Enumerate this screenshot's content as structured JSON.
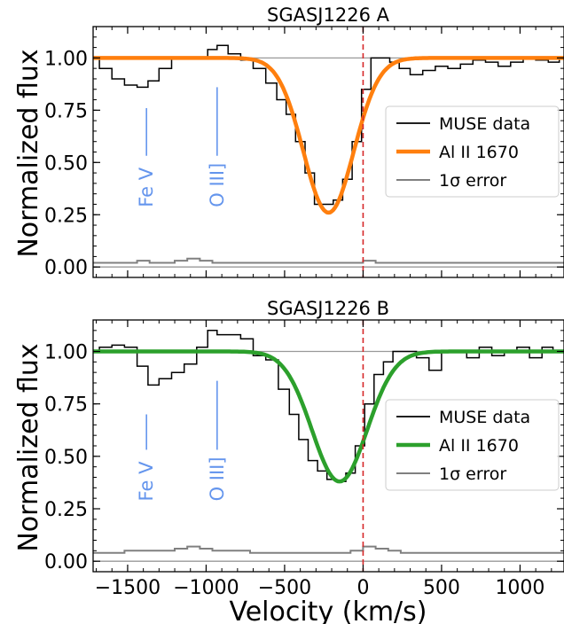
{
  "chart_data": {
    "type": "line",
    "shared_xlabel": "Velocity (km/s)",
    "xlim": [
      -1720,
      1280
    ],
    "xticks": [
      -1500,
      -1000,
      -500,
      0,
      500,
      1000
    ],
    "xtick_labels": [
      "−1500",
      "−1000",
      "−500",
      "0",
      "500",
      "1000"
    ],
    "colors": {
      "data": "#000000",
      "error": "#808080",
      "annotation": "#6495ED",
      "zero_line": "#d62728",
      "fit_top": "#ff7f0e",
      "fit_bottom": "#2ca02c"
    },
    "panels": [
      {
        "title": "SGASJ1226 A",
        "ylabel": "Normalized flux",
        "ylim": [
          -0.05,
          1.15
        ],
        "yticks": [
          0.0,
          0.25,
          0.5,
          0.75,
          1.0
        ],
        "ytick_labels": [
          "0.00",
          "0.25",
          "0.50",
          "0.75",
          "1.00"
        ],
        "legend": {
          "placement": "center-right",
          "entries": [
            "MUSE data",
            "Al II 1670",
            "1σ error"
          ]
        },
        "annotations": [
          {
            "label": "Fe V",
            "x": -1380,
            "y_range": [
              0.32,
              0.76
            ]
          },
          {
            "label": "O III]",
            "x": -930,
            "y_range": [
              0.32,
              0.86
            ]
          }
        ],
        "series": [
          {
            "name": "MUSE data",
            "drawstyle": "steps-mid",
            "x": [
              -1720,
              -1640,
              -1560,
              -1480,
              -1400,
              -1340,
              -1260,
              -1180,
              -1100,
              -1020,
              -960,
              -900,
              -820,
              -740,
              -660,
              -580,
              -520,
              -460,
              -400,
              -340,
              -280,
              -220,
              -160,
              -100,
              -40,
              20,
              80,
              140,
              200,
              260,
              340,
              420,
              500,
              580,
              660,
              740,
              820,
              900,
              980,
              1060,
              1140,
              1220,
              1280
            ],
            "y": [
              1.0,
              0.95,
              0.9,
              0.87,
              0.86,
              0.89,
              0.95,
              1.0,
              1.0,
              1.0,
              1.04,
              1.06,
              1.02,
              0.99,
              0.95,
              0.88,
              0.8,
              0.73,
              0.6,
              0.45,
              0.3,
              0.3,
              0.32,
              0.42,
              0.6,
              0.85,
              1.0,
              1.0,
              0.98,
              0.95,
              0.92,
              0.94,
              0.96,
              0.95,
              0.97,
              0.99,
              0.98,
              0.96,
              0.98,
              1.0,
              0.99,
              0.98,
              1.0
            ]
          },
          {
            "name": "Al II 1670",
            "style": "fit",
            "center": -220,
            "depth": 0.74,
            "sigma": 160
          },
          {
            "name": "1σ error",
            "drawstyle": "steps-mid",
            "x": [
              -1720,
              -1640,
              -1560,
              -1480,
              -1400,
              -1320,
              -1240,
              -1160,
              -1080,
              -1000,
              -920,
              -840,
              -760,
              -680,
              -600,
              -520,
              -440,
              -360,
              -280,
              -200,
              -120,
              -40,
              40,
              120,
              200,
              280,
              360,
              440,
              520,
              600,
              680,
              760,
              840,
              920,
              1000,
              1080,
              1160,
              1240,
              1280
            ],
            "y": [
              0.02,
              0.02,
              0.02,
              0.02,
              0.03,
              0.02,
              0.02,
              0.03,
              0.04,
              0.03,
              0.02,
              0.02,
              0.02,
              0.02,
              0.02,
              0.02,
              0.02,
              0.02,
              0.02,
              0.02,
              0.02,
              0.02,
              0.03,
              0.02,
              0.02,
              0.02,
              0.02,
              0.02,
              0.02,
              0.02,
              0.02,
              0.02,
              0.02,
              0.02,
              0.02,
              0.02,
              0.02,
              0.02,
              0.02
            ]
          }
        ]
      },
      {
        "title": "SGASJ1226 B",
        "ylabel": "Normalized flux",
        "ylim": [
          -0.05,
          1.15
        ],
        "yticks": [
          0.0,
          0.25,
          0.5,
          0.75,
          1.0
        ],
        "ytick_labels": [
          "0.00",
          "0.25",
          "0.50",
          "0.75",
          "1.00"
        ],
        "legend": {
          "placement": "center-right",
          "entries": [
            "MUSE data",
            "Al II 1670",
            "1σ error"
          ]
        },
        "annotations": [
          {
            "label": "Fe V",
            "x": -1380,
            "y_range": [
              0.32,
              0.7
            ]
          },
          {
            "label": "O III]",
            "x": -930,
            "y_range": [
              0.32,
              0.86
            ]
          }
        ],
        "series": [
          {
            "name": "MUSE data",
            "drawstyle": "steps-mid",
            "x": [
              -1720,
              -1640,
              -1560,
              -1480,
              -1400,
              -1340,
              -1260,
              -1180,
              -1100,
              -1020,
              -960,
              -900,
              -820,
              -740,
              -660,
              -580,
              -500,
              -440,
              -380,
              -320,
              -260,
              -200,
              -140,
              -80,
              -20,
              40,
              100,
              160,
              220,
              300,
              380,
              460,
              540,
              620,
              700,
              780,
              860,
              940,
              1020,
              1100,
              1180,
              1240,
              1280
            ],
            "y": [
              1.0,
              1.02,
              1.03,
              1.02,
              0.93,
              0.84,
              0.87,
              0.9,
              0.94,
              1.02,
              1.1,
              1.08,
              1.08,
              1.06,
              0.98,
              0.96,
              0.82,
              0.7,
              0.58,
              0.48,
              0.43,
              0.39,
              0.38,
              0.42,
              0.55,
              0.75,
              0.89,
              0.95,
              1.0,
              1.0,
              0.97,
              0.91,
              1.0,
              1.0,
              0.97,
              1.02,
              0.98,
              1.0,
              1.02,
              0.97,
              1.02,
              1.0,
              1.0
            ]
          },
          {
            "name": "Al II 1670",
            "style": "fit",
            "center": -150,
            "depth": 0.62,
            "sigma": 175
          },
          {
            "name": "1σ error",
            "drawstyle": "steps-mid",
            "x": [
              -1720,
              -1640,
              -1560,
              -1480,
              -1400,
              -1320,
              -1240,
              -1160,
              -1080,
              -1000,
              -920,
              -840,
              -760,
              -680,
              -600,
              -520,
              -440,
              -360,
              -280,
              -200,
              -120,
              -40,
              40,
              120,
              200,
              280,
              360,
              440,
              520,
              600,
              680,
              760,
              840,
              920,
              1000,
              1080,
              1160,
              1240,
              1280
            ],
            "y": [
              0.04,
              0.04,
              0.04,
              0.05,
              0.05,
              0.05,
              0.05,
              0.06,
              0.07,
              0.06,
              0.05,
              0.05,
              0.05,
              0.04,
              0.04,
              0.04,
              0.04,
              0.04,
              0.04,
              0.04,
              0.04,
              0.05,
              0.07,
              0.06,
              0.05,
              0.04,
              0.04,
              0.04,
              0.04,
              0.04,
              0.04,
              0.04,
              0.04,
              0.04,
              0.04,
              0.04,
              0.04,
              0.04,
              0.04
            ]
          }
        ]
      }
    ]
  }
}
